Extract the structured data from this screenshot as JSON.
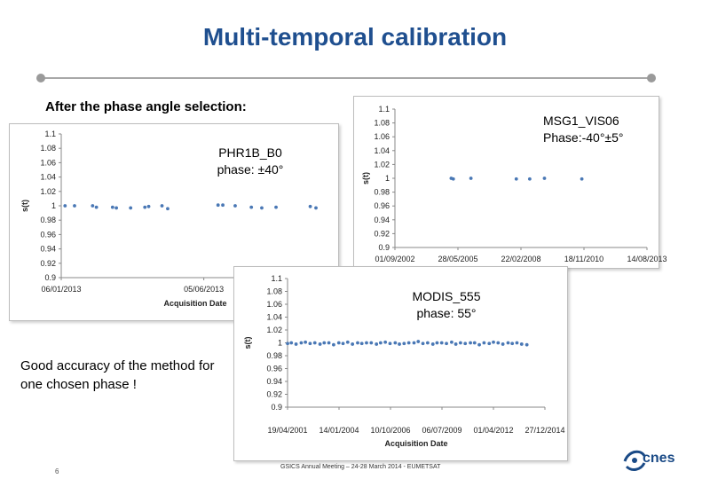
{
  "slide": {
    "title": "Multi-temporal calibration",
    "subtitle": "After the phase angle selection:",
    "note": "Good accuracy of the method for one chosen phase !",
    "page_number": "6",
    "footer": "GSICS Annual Meeting – 24-28 March 2014 - EUMETSAT",
    "logo_text": "cnes"
  },
  "colors": {
    "title": "#1f4f8f",
    "points": "#4a78b5",
    "axis": "#888888",
    "logo": "#1a4a86"
  },
  "chart_data": [
    {
      "type": "scatter",
      "label_box": {
        "line1": "PHR1B_B0",
        "line2": "phase: ±40°"
      },
      "xlabel": "Acquisition Date",
      "ylabel": "s(t)",
      "ylim": [
        0.9,
        1.1
      ],
      "y_ticks": [
        "1.1",
        "1.08",
        "1.06",
        "1.04",
        "1.02",
        "1",
        "0.98",
        "0.96",
        "0.94",
        "0.92",
        "0.9"
      ],
      "x_ticks": [
        "06/01/2013",
        "05/06/2013"
      ],
      "x": [
        "2013-01-10",
        "2013-01-20",
        "2013-02-08",
        "2013-02-12",
        "2013-03-01",
        "2013-03-05",
        "2013-03-20",
        "2013-04-04",
        "2013-04-08",
        "2013-04-22",
        "2013-04-28",
        "2013-06-20",
        "2013-06-25",
        "2013-07-08",
        "2013-07-25",
        "2013-08-05",
        "2013-08-20",
        "2013-09-25",
        "2013-10-01"
      ],
      "y": [
        1.0,
        1.0,
        1.0,
        0.998,
        0.998,
        0.997,
        0.997,
        0.998,
        0.999,
        1.0,
        0.996,
        1.001,
        1.001,
        1.0,
        0.998,
        0.997,
        0.998,
        0.999,
        0.997
      ]
    },
    {
      "type": "scatter",
      "label_box": {
        "line1": "MSG1_VIS06",
        "line2": "Phase:-40°±5°"
      },
      "xlabel": "",
      "ylabel": "s(t)",
      "ylim": [
        0.9,
        1.1
      ],
      "y_ticks": [
        "1.1",
        "1.08",
        "1.06",
        "1.04",
        "1.02",
        "1",
        "0.98",
        "0.96",
        "0.94",
        "0.92",
        "0.9"
      ],
      "x_ticks": [
        "01/09/2002",
        "28/05/2005",
        "22/02/2008",
        "18/11/2010",
        "14/08/2013"
      ],
      "x": [
        "2005-02-10",
        "2005-03-15",
        "2005-12-20",
        "2007-12-10",
        "2008-07-10",
        "2009-03-01",
        "2010-10-15"
      ],
      "y": [
        1.0,
        0.999,
        1.0,
        0.999,
        0.999,
        1.0,
        0.999
      ]
    },
    {
      "type": "scatter",
      "label_box": {
        "line1": "MODIS_555",
        "line2": "phase: 55°"
      },
      "xlabel": "Acquisition Date",
      "ylabel": "s(t)",
      "ylim": [
        0.9,
        1.1
      ],
      "y_ticks": [
        "1.1",
        "1.08",
        "1.06",
        "1.04",
        "1.02",
        "1",
        "0.98",
        "0.96",
        "0.94",
        "0.92",
        "0.9"
      ],
      "x_ticks": [
        "19/04/2001",
        "14/01/2004",
        "10/10/2006",
        "06/07/2009",
        "01/04/2012",
        "27/12/2014"
      ],
      "x": [
        "2001-04-20",
        "2001-07-01",
        "2001-10-01",
        "2002-01-10",
        "2002-04-01",
        "2002-07-01",
        "2002-10-01",
        "2003-01-10",
        "2003-04-01",
        "2003-07-01",
        "2003-10-01",
        "2004-01-10",
        "2004-04-01",
        "2004-07-01",
        "2004-10-01",
        "2005-01-10",
        "2005-04-01",
        "2005-07-01",
        "2005-10-01",
        "2006-01-10",
        "2006-04-01",
        "2006-07-01",
        "2006-10-01",
        "2007-01-10",
        "2007-04-01",
        "2007-07-01",
        "2007-10-01",
        "2008-01-10",
        "2008-04-01",
        "2008-07-01",
        "2008-10-01",
        "2009-01-10",
        "2009-04-01",
        "2009-07-01",
        "2009-10-01",
        "2010-01-10",
        "2010-04-01",
        "2010-07-01",
        "2010-10-01",
        "2011-01-10",
        "2011-04-01",
        "2011-07-01",
        "2011-10-01",
        "2012-01-10",
        "2012-04-01",
        "2012-07-01",
        "2012-10-01",
        "2013-01-10",
        "2013-04-01",
        "2013-07-01",
        "2013-10-01",
        "2014-01-10"
      ],
      "y": [
        0.999,
        1.0,
        0.998,
        1.0,
        1.001,
        0.999,
        1.0,
        0.998,
        1.0,
        1.0,
        0.997,
        1.0,
        0.999,
        1.001,
        0.998,
        1.0,
        0.999,
        1.0,
        1.0,
        0.998,
        1.0,
        1.001,
        0.999,
        1.0,
        0.998,
        0.999,
        1.0,
        1.0,
        1.002,
        0.999,
        1.0,
        0.998,
        1.0,
        1.0,
        0.999,
        1.001,
        0.998,
        1.0,
        0.999,
        1.0,
        1.0,
        0.997,
        1.0,
        0.999,
        1.001,
        1.0,
        0.998,
        1.0,
        0.999,
        1.0,
        0.998,
        0.997
      ]
    }
  ]
}
